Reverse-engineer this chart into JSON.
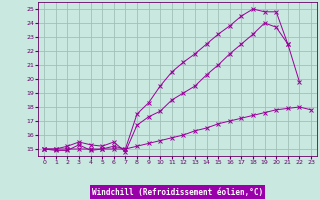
{
  "xlabel": "Windchill (Refroidissement éolien,°C)",
  "bg_color": "#c8e8e0",
  "grid_color": "#a0c0b8",
  "line_color": "#990099",
  "label_color": "#660066",
  "xlabel_bg": "#9900aa",
  "xlabel_fg": "#ffffff",
  "xlim": [
    -0.5,
    23.5
  ],
  "ylim": [
    14.5,
    25.5
  ],
  "xticks": [
    0,
    1,
    2,
    3,
    4,
    5,
    6,
    7,
    8,
    9,
    10,
    11,
    12,
    13,
    14,
    15,
    16,
    17,
    18,
    19,
    20,
    21,
    22,
    23
  ],
  "yticks": [
    15,
    16,
    17,
    18,
    19,
    20,
    21,
    22,
    23,
    24,
    25
  ],
  "line1_x": [
    0,
    1,
    2,
    3,
    4,
    5,
    6,
    7,
    8,
    9,
    10,
    11,
    12,
    13,
    14,
    15,
    16,
    17,
    18,
    19,
    20,
    21,
    22,
    23
  ],
  "line1_y": [
    15,
    15,
    15,
    15,
    15,
    15,
    15,
    15,
    15.2,
    15.4,
    15.6,
    15.8,
    16.0,
    16.3,
    16.5,
    16.8,
    17.0,
    17.2,
    17.4,
    17.6,
    17.8,
    17.9,
    18.0,
    17.8
  ],
  "line2_x": [
    0,
    1,
    2,
    3,
    4,
    5,
    6,
    7,
    8,
    9,
    10,
    11,
    12,
    13,
    14,
    15,
    16,
    17,
    18,
    19,
    20,
    21,
    22
  ],
  "line2_y": [
    15,
    15,
    15.2,
    15.5,
    15.3,
    15.2,
    15.5,
    14.8,
    16.7,
    17.3,
    17.7,
    18.5,
    19.0,
    19.5,
    20.3,
    21.0,
    21.8,
    22.5,
    23.2,
    24.0,
    23.7,
    22.5,
    19.8
  ],
  "line3_x": [
    0,
    1,
    2,
    3,
    4,
    5,
    6,
    7,
    8,
    9,
    10,
    11,
    12,
    13,
    14,
    15,
    16,
    17,
    18,
    19,
    20,
    21
  ],
  "line3_y": [
    15,
    14.9,
    14.9,
    15.3,
    14.9,
    15.0,
    15.2,
    15.0,
    17.5,
    18.3,
    19.5,
    20.5,
    21.2,
    21.8,
    22.5,
    23.2,
    23.8,
    24.5,
    25.0,
    24.8,
    24.8,
    22.5
  ]
}
